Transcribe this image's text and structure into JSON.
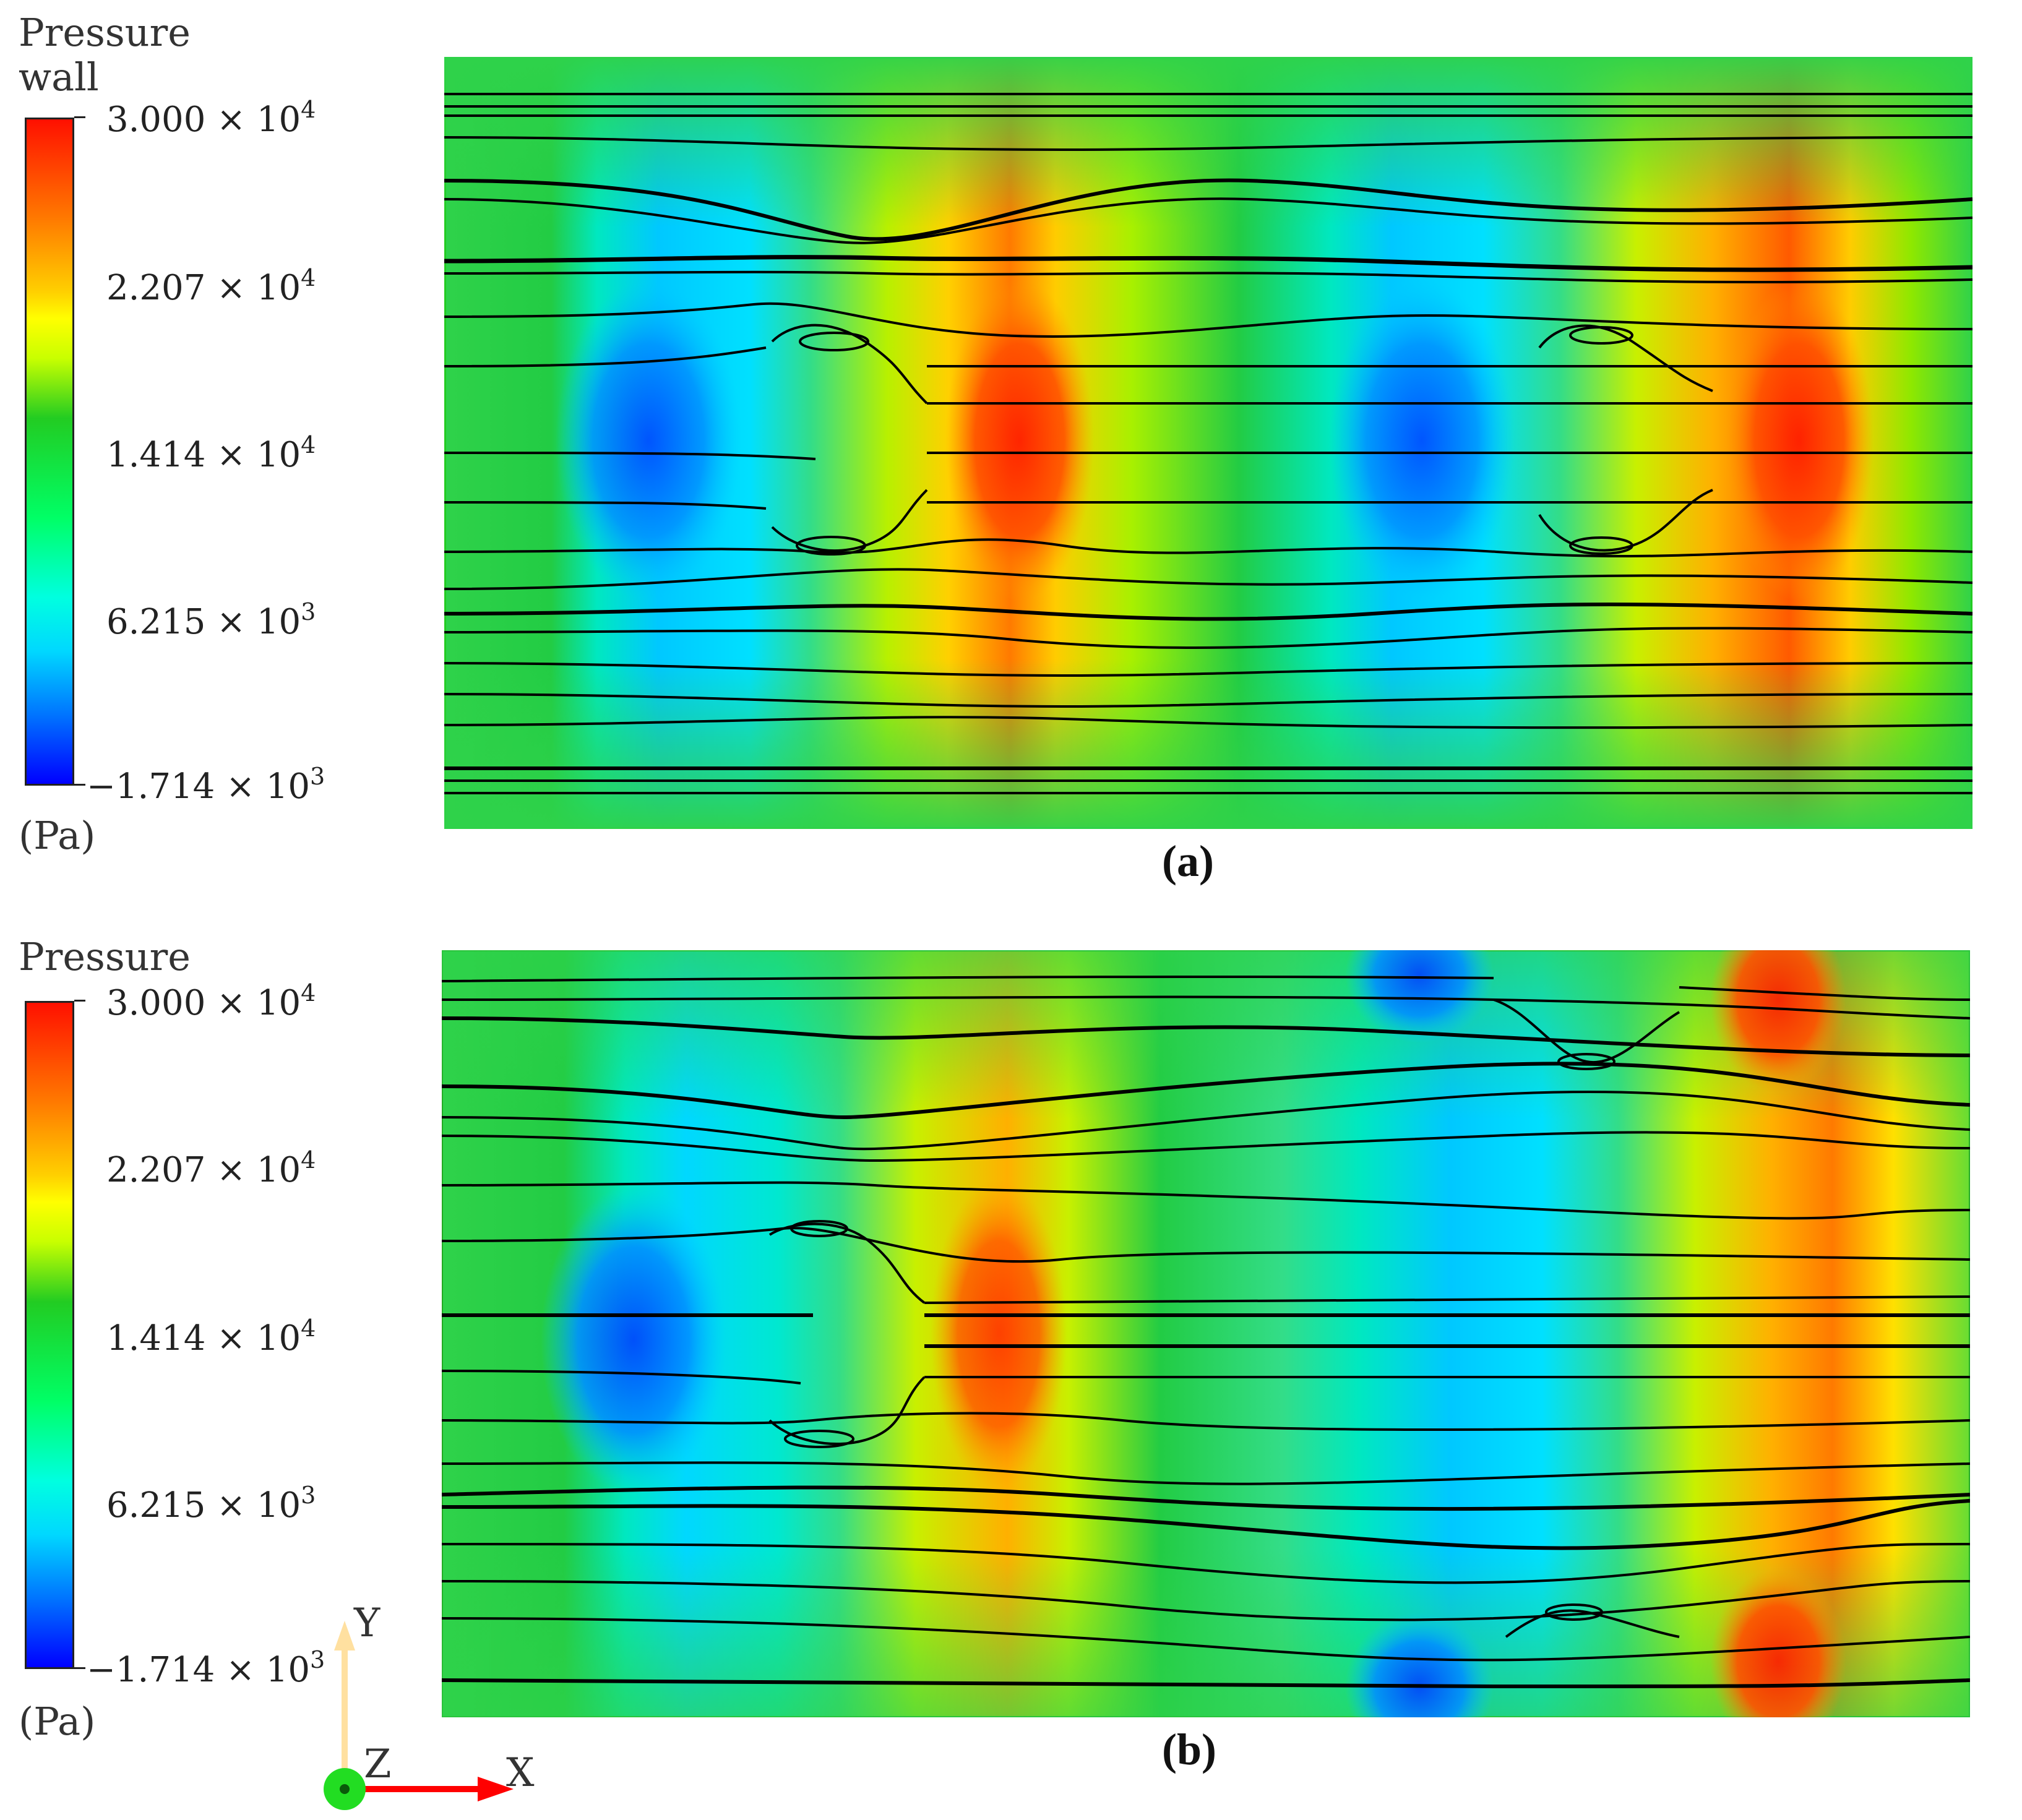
{
  "legend_a": {
    "title_line1": "Pressure",
    "title_line2": "wall",
    "unit": "(Pa)",
    "ticks": [
      {
        "mantissa": "3.000",
        "exp": "4"
      },
      {
        "mantissa": "2.207",
        "exp": "4"
      },
      {
        "mantissa": "1.414",
        "exp": "4"
      },
      {
        "mantissa": "6.215",
        "exp": "3"
      },
      {
        "mantissa": "1.714",
        "exp": "3"
      }
    ]
  },
  "legend_b": {
    "title_line1": "Pressure",
    "unit": "(Pa)",
    "ticks": [
      {
        "mantissa": "3.000",
        "exp": "4"
      },
      {
        "mantissa": "2.207",
        "exp": "4"
      },
      {
        "mantissa": "1.414",
        "exp": "4"
      },
      {
        "mantissa": "6.215",
        "exp": "3"
      },
      {
        "mantissa": "1.714",
        "exp": "3"
      }
    ]
  },
  "times_sign": "× 10",
  "panel_a": {
    "caption": "(a)"
  },
  "panel_b": {
    "caption": "(b)"
  },
  "axes": {
    "y": "Y",
    "z": "Z",
    "x": "X"
  },
  "colors": {
    "scale_max": "#ff1a00",
    "scale_high": "#ffff00",
    "scale_mid": "#22cc22",
    "scale_low": "#00ffff",
    "scale_min": "#0000ff",
    "streamline": "#000000",
    "x_axis": "#ff0000",
    "y_axis": "#ffe0a0",
    "origin": "#22dd22"
  }
}
